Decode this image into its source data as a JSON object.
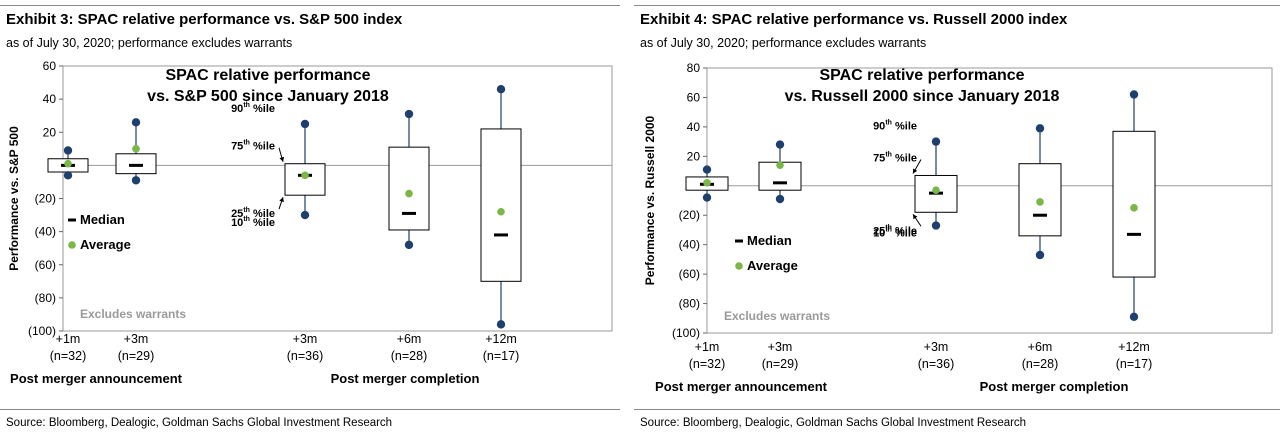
{
  "exhibits": [
    {
      "title": "Exhibit 3: SPAC relative performance vs. S&P 500 index",
      "subtitle": "as of July 30, 2020; performance excludes warrants",
      "source": "Source: Bloomberg, Dealogic, Goldman Sachs Global Investment Research"
    },
    {
      "title": "Exhibit 4: SPAC relative performance vs. Russell 2000 index",
      "subtitle": "as of July 30, 2020; performance excludes warrants",
      "source": "Source: Bloomberg, Dealogic, Goldman Sachs Global Investment Research"
    }
  ],
  "chart_data": [
    {
      "type": "box",
      "title_lines": [
        "SPAC relative performance",
        "vs. S&P 500 since January 2018"
      ],
      "ylabel": "Performance vs. S&P 500",
      "ylim": [
        -100,
        60
      ],
      "yticks": [
        60,
        40,
        20,
        0,
        -20,
        -40,
        -60,
        -80,
        -100
      ],
      "ytick_labels": [
        "60",
        "40",
        "20",
        "0",
        "(20)",
        "(40)",
        "(60)",
        "(80)",
        "(100)"
      ],
      "categories": [
        {
          "label": "+1m",
          "n": "(n=32)"
        },
        {
          "label": "+3m",
          "n": "(n=29)"
        },
        {
          "label": "+3m",
          "n": "(n=36)"
        },
        {
          "label": "+6m",
          "n": "(n=28)"
        },
        {
          "label": "+12m",
          "n": "(n=17)"
        }
      ],
      "groups": [
        "Post merger announcement",
        "Post merger completion"
      ],
      "boxes": [
        {
          "p10": -6,
          "p25": -4,
          "median": 0,
          "p75": 4,
          "p90": 9,
          "average": 1
        },
        {
          "p10": -9,
          "p25": -5,
          "median": 0,
          "p75": 7,
          "p90": 26,
          "average": 10
        },
        {
          "p10": -30,
          "p25": -18,
          "median": -6,
          "p75": 1,
          "p90": 25,
          "average": -6
        },
        {
          "p10": -48,
          "p25": -39,
          "median": -29,
          "p75": 11,
          "p90": 31,
          "average": -17
        },
        {
          "p10": -96,
          "p25": -70,
          "median": -42,
          "p75": 22,
          "p90": 46,
          "average": -28
        }
      ],
      "annotations": {
        "p90": "90",
        "p75": "75",
        "p25": "25",
        "p10": "10",
        "sup": "th",
        "suffix": " %ile"
      },
      "legend": {
        "median": "Median",
        "average": "Average"
      },
      "footnote": "Excludes warrants"
    },
    {
      "type": "box",
      "title_lines": [
        "SPAC relative performance",
        "vs. Russell 2000 since January 2018"
      ],
      "ylabel": "Performance vs. Russell 2000",
      "ylim": [
        -100,
        80
      ],
      "yticks": [
        80,
        60,
        40,
        20,
        0,
        -20,
        -40,
        -60,
        -80,
        -100
      ],
      "ytick_labels": [
        "80",
        "60",
        "40",
        "20",
        "0",
        "(20)",
        "(40)",
        "(60)",
        "(80)",
        "(100)"
      ],
      "categories": [
        {
          "label": "+1m",
          "n": "(n=32)"
        },
        {
          "label": "+3m",
          "n": "(n=29)"
        },
        {
          "label": "+3m",
          "n": "(n=36)"
        },
        {
          "label": "+6m",
          "n": "(n=28)"
        },
        {
          "label": "+12m",
          "n": "(n=17)"
        }
      ],
      "groups": [
        "Post merger announcement",
        "Post merger completion"
      ],
      "boxes": [
        {
          "p10": -8,
          "p25": -3,
          "median": 1,
          "p75": 6,
          "p90": 11,
          "average": 2
        },
        {
          "p10": -9,
          "p25": -3,
          "median": 2,
          "p75": 16,
          "p90": 28,
          "average": 14
        },
        {
          "p10": -27,
          "p25": -18,
          "median": -5,
          "p75": 7,
          "p90": 30,
          "average": -3
        },
        {
          "p10": -47,
          "p25": -34,
          "median": -20,
          "p75": 15,
          "p90": 39,
          "average": -11
        },
        {
          "p10": -89,
          "p25": -62,
          "median": -33,
          "p75": 37,
          "p90": 62,
          "average": -15
        }
      ],
      "annotations": {
        "p90": "90",
        "p75": "75",
        "p25": "25",
        "p10": "10",
        "sup": "th",
        "suffix": " %ile"
      },
      "legend": {
        "median": "Median",
        "average": "Average"
      },
      "footnote": "Excludes warrants"
    }
  ]
}
